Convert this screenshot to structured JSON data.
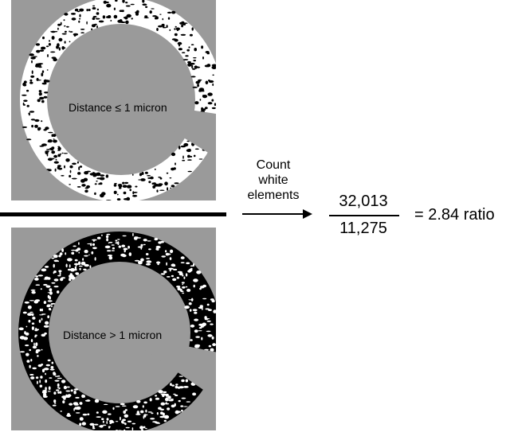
{
  "panels": {
    "top": {
      "label": "Distance ≤ 1 micron",
      "dominant": "white"
    },
    "bottom": {
      "label": "Distance > 1 micron",
      "dominant": "black"
    }
  },
  "process": {
    "line1": "Count",
    "line2": "white",
    "line3": "elements"
  },
  "result": {
    "numerator": "32,013",
    "denominator": "11,275",
    "ratio": "= 2.84 ratio"
  },
  "colors": {
    "panel_background": "#9a9a9a",
    "ink": "#000000",
    "paper": "#ffffff"
  }
}
